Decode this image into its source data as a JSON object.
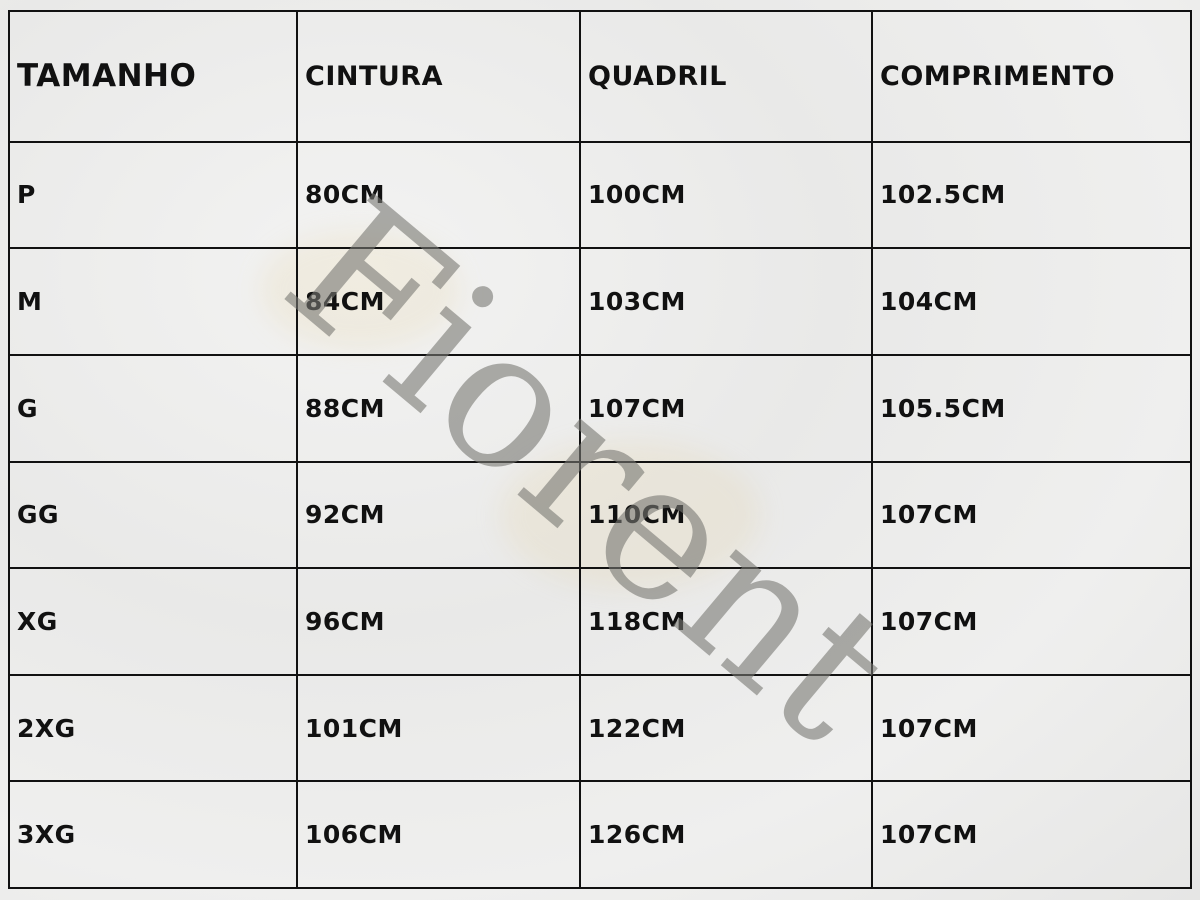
{
  "headers": [
    "TAMANHO",
    "CINTURA",
    "QUADRIL",
    "COMPRIMENTO"
  ],
  "rows": [
    [
      "P",
      "80CM",
      "100CM",
      "102.5CM"
    ],
    [
      "M",
      "84CM",
      "103CM",
      "104CM"
    ],
    [
      "G",
      "88CM",
      "107CM",
      "105.5CM"
    ],
    [
      "GG",
      "92CM",
      "110CM",
      "107CM"
    ],
    [
      "XG",
      "96CM",
      "118CM",
      "107CM"
    ],
    [
      "2XG",
      "101CM",
      "122CM",
      "107CM"
    ],
    [
      "3XG",
      "106CM",
      "126CM",
      "107CM"
    ]
  ],
  "watermark": "Fiorent"
}
